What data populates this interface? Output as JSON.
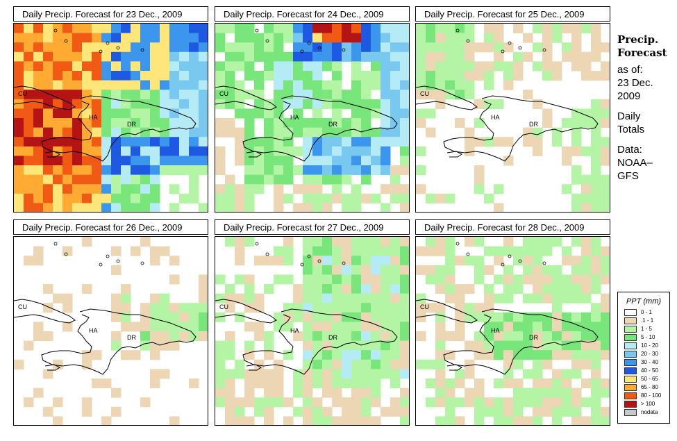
{
  "panels": [
    {
      "title": "Daily Precip. Forecast for  23 Dec., 2009",
      "pattern": "heavy"
    },
    {
      "title": "Daily Precip. Forecast for  24 Dec., 2009",
      "pattern": "moderate"
    },
    {
      "title": "Daily Precip. Forecast for  25 Dec., 2009",
      "pattern": "light"
    },
    {
      "title": "Daily Precip. Forecast for  26 Dec., 2009",
      "pattern": "sparse"
    },
    {
      "title": "Daily Precip. Forecast for  27 Dec., 2009",
      "pattern": "light-east"
    },
    {
      "title": "Daily Precip. Forecast for  28 Dec., 2009",
      "pattern": "light-mixed"
    }
  ],
  "map_labels": {
    "cuba": "CU",
    "haiti": "HA",
    "dominican_republic": "DR"
  },
  "sidebar": {
    "title_line1": "Precip.",
    "title_line2": "Forecast",
    "asof": "as of:",
    "date_line1": "23 Dec.",
    "date_line2": "2009",
    "daily_line1": "Daily",
    "daily_line2": "Totals",
    "data_line1": "Data:",
    "data_line2": "NOAA–",
    "data_line3": "GFS"
  },
  "legend": {
    "title": "PPT (mm)",
    "items": [
      {
        "label": "0 - 1",
        "color": "#ffffff"
      },
      {
        "label": ".1 - 1",
        "color": "#ecd6b4"
      },
      {
        "label": "1 - 5",
        "color": "#b4f5a5"
      },
      {
        "label": "5 - 10",
        "color": "#78e67a"
      },
      {
        "label": "10 - 20",
        "color": "#b4ebf5"
      },
      {
        "label": "20 - 30",
        "color": "#78c8f0"
      },
      {
        "label": "30 - 40",
        "color": "#3c96eb"
      },
      {
        "label": "40 - 50",
        "color": "#1e5ae1"
      },
      {
        "label": "50 - 65",
        "color": "#ffe678"
      },
      {
        "label": "65 - 80",
        "color": "#ffaa32"
      },
      {
        "label": "80 - 100",
        "color": "#f05a14"
      },
      {
        "label": "> 100",
        "color": "#b41414"
      },
      {
        "label": "nodata",
        "color": "#c8c8c8"
      }
    ]
  }
}
